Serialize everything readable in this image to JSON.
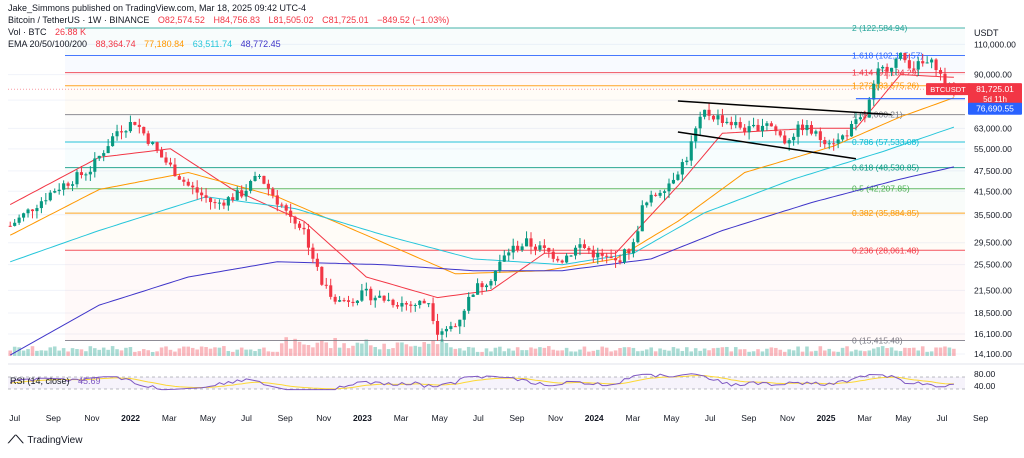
{
  "publisher_line": "Jake_Simmons published on TradingView.com, Mar 18, 2025 09:42 UTC-4",
  "symbol_line": {
    "title": "Bitcoin / TetherUS · 1W · BINANCE",
    "open": "O82,574.52",
    "high": "H84,756.83",
    "low": "L81,505.02",
    "close": "C81,725.01",
    "change": "−849.52 (−1.03%)"
  },
  "vol_line": {
    "label": "Vol · BTC",
    "value": "26.88 K"
  },
  "ema_line": {
    "label": "EMA 20/50/100/200",
    "v20": "88,364.74",
    "v50": "77,180.84",
    "v100": "63,511.74",
    "v200": "48,772.45"
  },
  "rsi_line": {
    "label": "RSI (14, close)",
    "value": "45.69"
  },
  "currency_label": "USDT",
  "price_badge": {
    "symbol": "BTCUSDT",
    "price": "81,725.01",
    "countdown": "5d 11h"
  },
  "level_badge": "76,690.55",
  "watermark": "TradingView",
  "colors": {
    "bull": "#089981",
    "bear": "#f23645",
    "ema20": "#f23645",
    "ema50": "#ff9800",
    "ema100": "#26c6da",
    "ema200": "#3f35c9",
    "fib_2": "#26a69a",
    "fib_1618": "#2962ff",
    "fib_1414": "#f23645",
    "fib_1272": "#ff9800",
    "fib_1": "#787b86",
    "fib_0786": "#00bcd4",
    "fib_0618": "#089981",
    "fib_05": "#4caf50",
    "fib_0382": "#ff9800",
    "fib_0236": "#f23645",
    "fib_0": "#787b86",
    "rsi": "#7e57c2"
  },
  "chart_data": {
    "type": "candlestick",
    "scale": "log",
    "y_unit": "USDT",
    "y_ticks": [
      110000,
      90000,
      76000,
      63000,
      55000,
      47500,
      41500,
      35500,
      29500,
      25500,
      21500,
      18500,
      16100,
      14100
    ],
    "y_tick_labels": [
      "110,000.00",
      "90,000.00",
      "76,000.00",
      "63,000.00",
      "55,000.00",
      "47,500.00",
      "41,500.00",
      "35,500.00",
      "29,500.00",
      "25,500.00",
      "21,500.00",
      "18,500.00",
      "16,100.00",
      "14,100.00"
    ],
    "x_tick_labels": [
      "Jul",
      "Sep",
      "Nov",
      "2022",
      "Mar",
      "May",
      "Jul",
      "Sep",
      "Nov",
      "2023",
      "Mar",
      "May",
      "Jul",
      "Sep",
      "Nov",
      "2024",
      "Mar",
      "May",
      "Jul",
      "Sep",
      "Nov",
      "2025",
      "Mar",
      "May",
      "Jul",
      "Sep"
    ],
    "fib_levels": [
      {
        "ratio": "2",
        "price": 122584.94,
        "label": "2 (122,584.94)",
        "color_key": "fib_2"
      },
      {
        "ratio": "1.618",
        "price": 102115.57,
        "label": "1.618 (102,115.57)",
        "color_key": "fib_1618"
      },
      {
        "ratio": "1.414",
        "price": 91184.29,
        "label": "1.414 (91,184.29)",
        "color_key": "fib_1414"
      },
      {
        "ratio": "1.272",
        "price": 83575.26,
        "label": "1.272 (83,575.26)",
        "color_key": "fib_1272"
      },
      {
        "ratio": "1",
        "price": 69000.21,
        "label": "1 (69,000.21)",
        "color_key": "fib_1"
      },
      {
        "ratio": "0.786",
        "price": 57533.08,
        "label": "0.786 (57,533.08)",
        "color_key": "fib_0786"
      },
      {
        "ratio": "0.618",
        "price": 48530.85,
        "label": "0.618 (48,530.85)",
        "color_key": "fib_0618"
      },
      {
        "ratio": "0.5",
        "price": 42207.85,
        "label": "0.5 (42,207.85)",
        "color_key": "fib_05"
      },
      {
        "ratio": "0.382",
        "price": 35884.85,
        "label": "0.382 (35,884.85)",
        "color_key": "fib_0382"
      },
      {
        "ratio": "0.236",
        "price": 28061.48,
        "label": "0.236 (28,061.48)",
        "color_key": "fib_0236"
      },
      {
        "ratio": "0",
        "price": 15415.48,
        "label": "0 (15,415.48)",
        "color_key": "fib_0"
      }
    ],
    "support_line": 76690.55,
    "last_price": 81725.01,
    "price_path": [
      [
        0,
        33000
      ],
      [
        10,
        42000
      ],
      [
        18,
        48000
      ],
      [
        24,
        62000
      ],
      [
        28,
        66000
      ],
      [
        34,
        52000
      ],
      [
        40,
        43000
      ],
      [
        46,
        38000
      ],
      [
        52,
        41000
      ],
      [
        56,
        46000
      ],
      [
        60,
        39000
      ],
      [
        66,
        32000
      ],
      [
        70,
        22500
      ],
      [
        74,
        20000
      ],
      [
        80,
        21000
      ],
      [
        86,
        20000
      ],
      [
        90,
        19500
      ],
      [
        94,
        20000
      ],
      [
        96,
        16500
      ],
      [
        100,
        17000
      ],
      [
        104,
        21500
      ],
      [
        108,
        23500
      ],
      [
        112,
        28000
      ],
      [
        116,
        29500
      ],
      [
        120,
        28000
      ],
      [
        124,
        26500
      ],
      [
        128,
        29000
      ],
      [
        132,
        27000
      ],
      [
        136,
        26000
      ],
      [
        140,
        29000
      ],
      [
        142,
        37000
      ],
      [
        146,
        42000
      ],
      [
        148,
        44000
      ],
      [
        152,
        52000
      ],
      [
        154,
        62000
      ],
      [
        156,
        70000
      ],
      [
        160,
        67000
      ],
      [
        166,
        62000
      ],
      [
        170,
        66000
      ],
      [
        174,
        58000
      ],
      [
        178,
        64000
      ],
      [
        182,
        59000
      ],
      [
        186,
        58000
      ],
      [
        190,
        65000
      ],
      [
        192,
        68000
      ],
      [
        195,
        91000
      ],
      [
        198,
        97000
      ],
      [
        200,
        101000
      ],
      [
        203,
        95000
      ],
      [
        206,
        97000
      ],
      [
        208,
        96000
      ],
      [
        210,
        83000
      ],
      [
        212,
        81725
      ]
    ],
    "ema_paths": {
      "ema20": [
        [
          0,
          38000
        ],
        [
          20,
          52000
        ],
        [
          36,
          55000
        ],
        [
          50,
          42000
        ],
        [
          66,
          34000
        ],
        [
          80,
          23500
        ],
        [
          96,
          20500
        ],
        [
          108,
          21500
        ],
        [
          120,
          27500
        ],
        [
          136,
          27500
        ],
        [
          150,
          43000
        ],
        [
          160,
          61000
        ],
        [
          180,
          63000
        ],
        [
          190,
          63000
        ],
        [
          200,
          90000
        ],
        [
          212,
          88365
        ]
      ],
      "ema50": [
        [
          0,
          31000
        ],
        [
          20,
          42000
        ],
        [
          40,
          47000
        ],
        [
          60,
          40000
        ],
        [
          80,
          31000
        ],
        [
          100,
          24000
        ],
        [
          120,
          24500
        ],
        [
          136,
          26500
        ],
        [
          150,
          34000
        ],
        [
          165,
          47000
        ],
        [
          185,
          56000
        ],
        [
          200,
          68000
        ],
        [
          212,
          77181
        ]
      ],
      "ema100": [
        [
          0,
          26000
        ],
        [
          20,
          32000
        ],
        [
          44,
          40000
        ],
        [
          64,
          37000
        ],
        [
          84,
          31000
        ],
        [
          104,
          26500
        ],
        [
          124,
          25500
        ],
        [
          140,
          27500
        ],
        [
          156,
          36000
        ],
        [
          176,
          45000
        ],
        [
          196,
          54000
        ],
        [
          212,
          63512
        ]
      ],
      "ema200": [
        [
          0,
          14000
        ],
        [
          20,
          19500
        ],
        [
          40,
          23500
        ],
        [
          60,
          26000
        ],
        [
          84,
          25500
        ],
        [
          104,
          24500
        ],
        [
          124,
          24500
        ],
        [
          144,
          26500
        ],
        [
          160,
          32000
        ],
        [
          180,
          38500
        ],
        [
          200,
          45000
        ],
        [
          212,
          48772
        ]
      ]
    },
    "channel": {
      "upper": [
        [
          150,
          75500
        ],
        [
          198,
          69000
        ]
      ],
      "lower": [
        [
          150,
          61500
        ],
        [
          190,
          51500
        ]
      ]
    },
    "rsi": {
      "label": "RSI (14, close)",
      "value": 45.69,
      "y_ticks": [
        80,
        40
      ],
      "bands": [
        70,
        30
      ]
    }
  }
}
